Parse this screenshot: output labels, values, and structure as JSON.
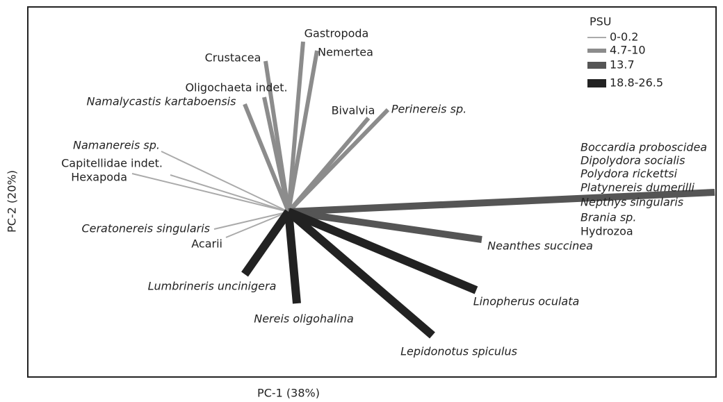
{
  "axes": {
    "x_label": "PC-1 (38%)",
    "y_label": "PC-2 (20%)"
  },
  "legend": {
    "title": "PSU",
    "groups": [
      {
        "label": "0-0.2",
        "color": "#aaaaaa",
        "vectors": [
          {
            "labels": [
              "Namanereis sp."
            ]
          },
          {
            "labels": [
              "Capitellidae indet."
            ]
          },
          {
            "labels": [
              "Hexapoda"
            ]
          },
          {
            "labels": [
              "Ceratonereis singularis"
            ]
          },
          {
            "labels": [
              "Acarii"
            ]
          }
        ]
      },
      {
        "label": "4.7-10",
        "color": "#8c8c8c",
        "vectors": [
          {
            "labels": [
              "Crustacea"
            ]
          },
          {
            "labels": [
              "Gastropoda"
            ]
          },
          {
            "labels": [
              "Nemertea"
            ]
          },
          {
            "labels": [
              "Oligochaeta indet."
            ]
          },
          {
            "labels": [
              "Namalycastis kartaboensis"
            ]
          },
          {
            "labels": [
              "Bivalvia"
            ]
          },
          {
            "labels": [
              "Perinereis sp."
            ]
          }
        ]
      },
      {
        "label": "13.7",
        "color": "#555555",
        "vectors": [
          {
            "labels": [
              "Boccardia proboscidea",
              "Dipolydora socialis",
              "Polydora rickettsi",
              "Platynereis dumerilli",
              "Nepthys singularis",
              "Brania sp.",
              "Hydrozoa"
            ]
          },
          {
            "labels": [
              "Neanthes succinea"
            ]
          }
        ]
      },
      {
        "label": "18.8-26.5",
        "color": "#222222",
        "vectors": [
          {
            "labels": [
              "Lumbrineris uncinigera"
            ]
          },
          {
            "labels": [
              "Nereis oligohalina"
            ]
          },
          {
            "labels": [
              "Linopherus oculata"
            ]
          },
          {
            "labels": [
              "Lepidonotus spiculus"
            ]
          }
        ]
      }
    ]
  }
}
